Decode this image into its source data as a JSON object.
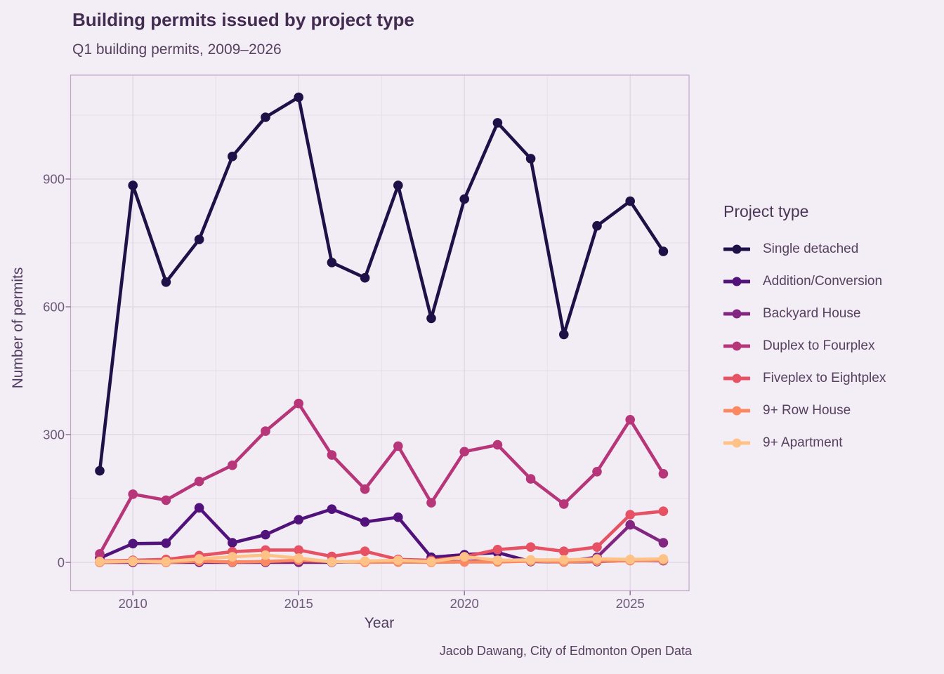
{
  "theme": {
    "background": "#f3edf5",
    "panel_background": "#f2ecf4",
    "panel_border": "#c1a5c8",
    "grid_major": "#ded4e1",
    "grid_minor": "#e8dee9",
    "tick_mark": "#8d7898",
    "title_color": "#432c51",
    "text_color": "#56415f",
    "axis_text_color": "#6d5a7a"
  },
  "chart_data": {
    "type": "line",
    "title": "Building permits issued by project type",
    "subtitle": "Q1 building permits, 2009–2026",
    "xlabel": "Year",
    "ylabel": "Number of permits",
    "caption": "Jacob Dawang, City of Edmonton Open Data",
    "legend_title": "Project type",
    "legend_position": "right",
    "grid": true,
    "x": [
      2009,
      2010,
      2011,
      2012,
      2013,
      2014,
      2015,
      2016,
      2017,
      2018,
      2019,
      2020,
      2021,
      2022,
      2023,
      2024,
      2025,
      2026
    ],
    "x_ticks": [
      2010,
      2015,
      2020,
      2025
    ],
    "x_minor_ticks": [
      2012.5,
      2017.5,
      2022.5
    ],
    "y_ticks": [
      0,
      300,
      600,
      900
    ],
    "y_minor_ticks": [
      150,
      450,
      750,
      1050
    ],
    "xlim": [
      2008.13,
      2026.78
    ],
    "ylim": [
      -66,
      1144
    ],
    "series": [
      {
        "name": "Single detached",
        "color": "#1d1147",
        "values": [
          215,
          885,
          658,
          758,
          953,
          1045,
          1092,
          704,
          668,
          885,
          573,
          853,
          1032,
          948,
          535,
          790,
          848,
          730
        ]
      },
      {
        "name": "Addition/Conversion",
        "color": "#51127c",
        "values": [
          10,
          44,
          45,
          128,
          46,
          65,
          100,
          125,
          95,
          106,
          12,
          18,
          23,
          2,
          1,
          2,
          5,
          4
        ]
      },
      {
        "name": "Backyard House",
        "color": "#822681",
        "values": [
          0,
          0,
          0,
          0,
          0,
          0,
          0,
          0,
          2,
          1,
          1,
          2,
          5,
          3,
          2,
          12,
          88,
          46
        ]
      },
      {
        "name": "Duplex to Fourplex",
        "color": "#b63679",
        "values": [
          20,
          160,
          146,
          190,
          228,
          308,
          373,
          252,
          172,
          273,
          140,
          260,
          276,
          196,
          137,
          213,
          335,
          208
        ]
      },
      {
        "name": "Fiveplex to Eightplex",
        "color": "#e65164",
        "values": [
          3,
          5,
          7,
          16,
          25,
          29,
          29,
          14,
          26,
          7,
          5,
          13,
          30,
          36,
          26,
          36,
          112,
          120
        ]
      },
      {
        "name": "9+ Row House",
        "color": "#fb8861",
        "values": [
          0,
          2,
          0,
          3,
          1,
          2,
          5,
          2,
          0,
          1,
          0,
          1,
          1,
          3,
          1,
          3,
          4,
          5
        ]
      },
      {
        "name": "9+ Apartment",
        "color": "#fec287",
        "values": [
          2,
          3,
          2,
          8,
          13,
          17,
          10,
          1,
          3,
          5,
          2,
          13,
          5,
          6,
          6,
          8,
          7,
          8
        ]
      }
    ]
  }
}
